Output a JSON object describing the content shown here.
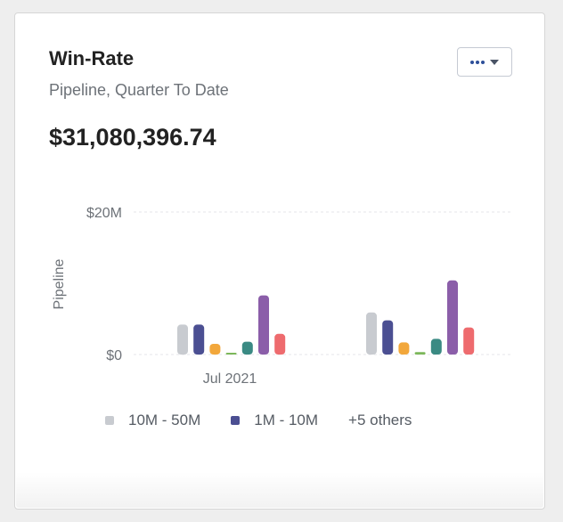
{
  "card": {
    "title": "Win-Rate",
    "subtitle": "Pipeline, Quarter To Date",
    "total": "$31,080,396.74",
    "menu_icon": "ellipsis-icon",
    "dropdown_icon": "caret-down-icon"
  },
  "legend": {
    "items": [
      {
        "label": "10M - 50M",
        "color": "#c8cbd0"
      },
      {
        "label": "1M - 10M",
        "color": "#4b4f92"
      }
    ],
    "more": "+5 others"
  },
  "chart_data": {
    "type": "bar",
    "ylabel": "Pipeline",
    "yticks": [
      "$0",
      "$20M"
    ],
    "ylim": [
      0,
      20000000
    ],
    "x_tick_labels": [
      "Jul 2021",
      ""
    ],
    "grid": true,
    "legend_position": "bottom",
    "groups": [
      {
        "label": "Jul 2021",
        "values": [
          4200000,
          4200000,
          1500000,
          150000,
          1800000,
          8300000,
          2900000
        ]
      },
      {
        "label": "",
        "values": [
          5900000,
          4800000,
          1700000,
          350000,
          2200000,
          10400000,
          3800000
        ]
      }
    ],
    "colors": [
      "#c8cbd0",
      "#4b4f92",
      "#f2a73b",
      "#7cb75a",
      "#3a8a83",
      "#8b5ea9",
      "#ee6b6e"
    ]
  }
}
